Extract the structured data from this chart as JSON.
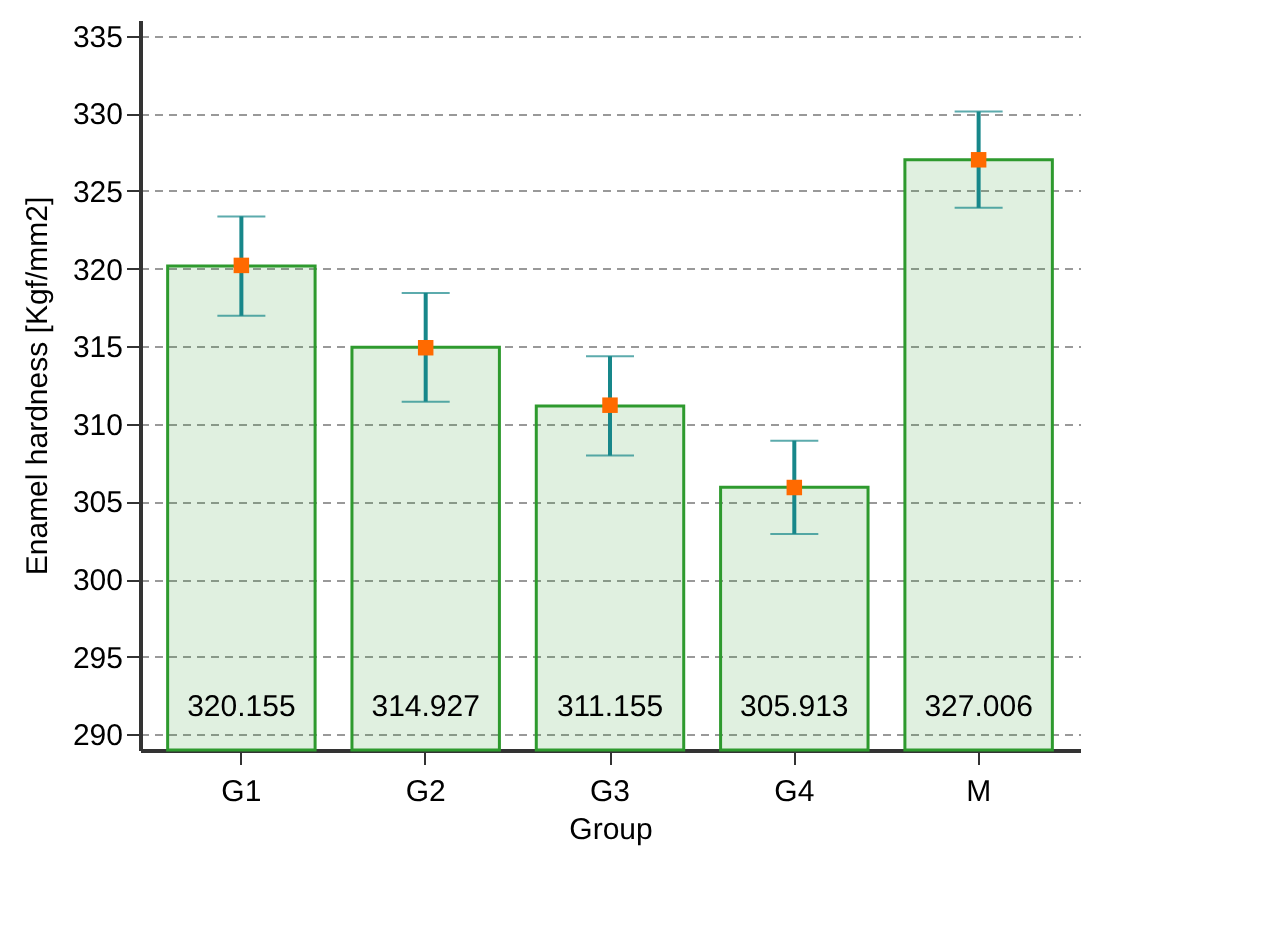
{
  "chart_data": {
    "type": "bar",
    "xlabel": "Group",
    "ylabel": "Enamel hardness  [Kgf/mm2]",
    "categories": [
      "G1",
      "G2",
      "G3",
      "G4",
      "M"
    ],
    "series": [
      {
        "type": "bar",
        "color": "#2e9a2e",
        "values": [
          320.155,
          314.927,
          311.155,
          305.913,
          327.006
        ],
        "errors": [
          3.2,
          3.5,
          3.2,
          3.0,
          3.1
        ],
        "value_labels": [
          "320.155",
          "314.927",
          "311.155",
          "305.913",
          "327.006"
        ]
      },
      {
        "type": "scatter",
        "color": "#ff6a00",
        "marker": "square",
        "x": [
          "G1",
          "G2",
          "G3",
          "G4",
          "M"
        ],
        "values": [
          320.2,
          314.9,
          311.2,
          305.9,
          327.0
        ]
      }
    ],
    "ylim": [
      289,
      336
    ],
    "yticks": [
      290,
      295,
      300,
      305,
      310,
      315,
      320,
      325,
      330,
      335
    ],
    "grid": "y"
  }
}
